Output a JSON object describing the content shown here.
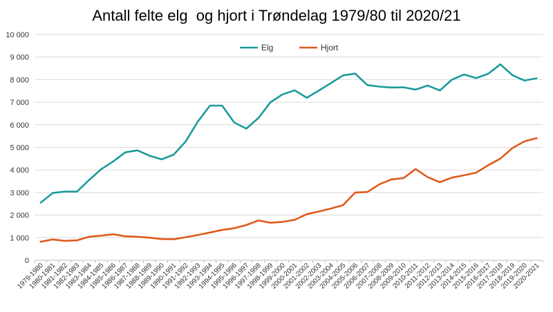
{
  "chart_data": {
    "type": "line",
    "title": "Antall felte elg  og hjort i Trøndelag 1979/80 til 2020/21",
    "xlabel": "",
    "ylabel": "",
    "ylim": [
      0,
      10000
    ],
    "yticks": [
      "0",
      "1 000",
      "2 000",
      "3 000",
      "4 000",
      "5 000",
      "6 000",
      "7 000",
      "8 000",
      "9 000",
      "10 000"
    ],
    "grid": true,
    "legend_position": "top",
    "categories": [
      "1979-1980",
      "1980-1981",
      "1981-1982",
      "1982-1983",
      "1983-1984",
      "1984-1985",
      "1985-1986",
      "1986-1987",
      "1987-1988",
      "1988-1989",
      "1989-1990",
      "1990-1991",
      "1991-1992",
      "1992-1993",
      "1993-1994",
      "1994-1995",
      "1995-1996",
      "1996-1997",
      "1997-1998",
      "1998-1999",
      "1999-2000",
      "2000-2001",
      "2001-2002",
      "2002-2003",
      "2003-2004",
      "2004-2005",
      "2005-2006",
      "2006-2007",
      "2007-2008",
      "2008-2009",
      "2009-2010",
      "2010-2011",
      "2011-2012",
      "2012-2013",
      "2013-2014",
      "2014-2015",
      "2015-2016",
      "2016-2017",
      "2017-2018",
      "2018-2019",
      "2019-2020",
      "2020-2021"
    ],
    "series": [
      {
        "name": "Elg",
        "color": "#1a9a9a",
        "values": [
          2550,
          2980,
          3040,
          3040,
          3550,
          4030,
          4380,
          4780,
          4870,
          4630,
          4470,
          4680,
          5270,
          6150,
          6850,
          6850,
          6100,
          5830,
          6300,
          7000,
          7350,
          7530,
          7200,
          7520,
          7850,
          8190,
          8270,
          7760,
          7690,
          7650,
          7660,
          7560,
          7740,
          7520,
          8000,
          8230,
          8070,
          8260,
          8680,
          8200,
          7960,
          8060
        ]
      },
      {
        "name": "Hjort",
        "color": "#e0591a",
        "values": [
          820,
          920,
          860,
          880,
          1040,
          1090,
          1150,
          1060,
          1040,
          1000,
          940,
          930,
          1020,
          1120,
          1230,
          1340,
          1420,
          1560,
          1760,
          1660,
          1700,
          1790,
          2040,
          2160,
          2290,
          2440,
          3000,
          3020,
          3360,
          3580,
          3640,
          4040,
          3680,
          3460,
          3660,
          3760,
          3880,
          4210,
          4500,
          4970,
          5270,
          5410
        ]
      }
    ]
  }
}
